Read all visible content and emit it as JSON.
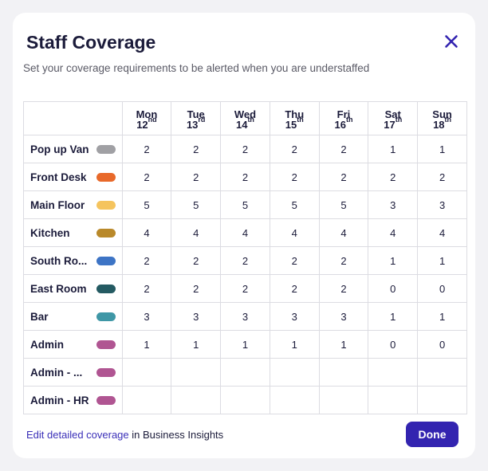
{
  "dialog": {
    "title": "Staff Coverage",
    "subtitle": "Set your coverage requirements to be alerted when you are understaffed"
  },
  "days": [
    {
      "name": "Mon",
      "num": "12",
      "suffix": "nd"
    },
    {
      "name": "Tue",
      "num": "13",
      "suffix": "rd"
    },
    {
      "name": "Wed",
      "num": "14",
      "suffix": "th"
    },
    {
      "name": "Thu",
      "num": "15",
      "suffix": "th"
    },
    {
      "name": "Fri",
      "num": "16",
      "suffix": "th"
    },
    {
      "name": "Sat",
      "num": "17",
      "suffix": "th"
    },
    {
      "name": "Sun",
      "num": "18",
      "suffix": "th"
    }
  ],
  "roles": [
    {
      "name": "Pop up Van",
      "color": "#a0a0a4",
      "values": [
        "2",
        "2",
        "2",
        "2",
        "2",
        "1",
        "1"
      ]
    },
    {
      "name": "Front Desk",
      "color": "#e8692a",
      "values": [
        "2",
        "2",
        "2",
        "2",
        "2",
        "2",
        "2"
      ]
    },
    {
      "name": "Main Floor",
      "color": "#f5c45e",
      "values": [
        "5",
        "5",
        "5",
        "5",
        "5",
        "3",
        "3"
      ]
    },
    {
      "name": "Kitchen",
      "color": "#b9892a",
      "values": [
        "4",
        "4",
        "4",
        "4",
        "4",
        "4",
        "4"
      ]
    },
    {
      "name": "South Ro...",
      "color": "#3d74c5",
      "values": [
        "2",
        "2",
        "2",
        "2",
        "2",
        "1",
        "1"
      ]
    },
    {
      "name": "East Room",
      "color": "#245a62",
      "values": [
        "2",
        "2",
        "2",
        "2",
        "2",
        "0",
        "0"
      ]
    },
    {
      "name": "Bar",
      "color": "#3f97a6",
      "values": [
        "3",
        "3",
        "3",
        "3",
        "3",
        "1",
        "1"
      ]
    },
    {
      "name": "Admin",
      "color": "#b05592",
      "values": [
        "1",
        "1",
        "1",
        "1",
        "1",
        "0",
        "0"
      ]
    },
    {
      "name": "Admin - ...",
      "color": "#b05592",
      "values": [
        "",
        "",
        "",
        "",
        "",
        "",
        ""
      ]
    },
    {
      "name": "Admin - HR",
      "color": "#b05592",
      "values": [
        "",
        "",
        "",
        "",
        "",
        "",
        ""
      ]
    }
  ],
  "footer": {
    "link_text": "Edit detailed coverage",
    "link_suffix": " in Business Insights",
    "done_label": "Done"
  },
  "icons": {
    "close": "close-icon"
  },
  "colors": {
    "accent": "#3324b0",
    "link": "#3a2fb8"
  }
}
